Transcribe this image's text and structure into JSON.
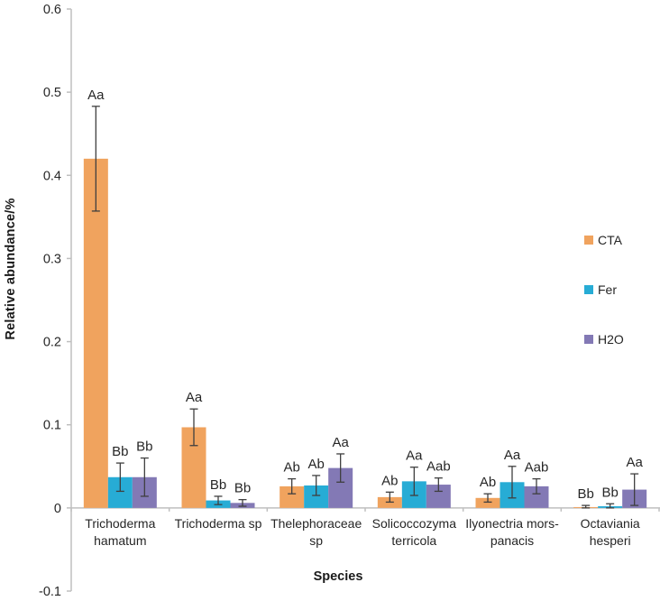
{
  "chart_data": {
    "type": "bar",
    "title": "",
    "xlabel": "Species",
    "ylabel": "Relative abundance/%",
    "ylim": [
      -0.1,
      0.6
    ],
    "ytick_labels": [
      "0.6",
      "0.5",
      "0.4",
      "0.3",
      "0.2",
      "0.1",
      "0",
      "-0.1"
    ],
    "ytick_values": [
      0.6,
      0.5,
      0.4,
      0.3,
      0.2,
      0.1,
      0,
      -0.1
    ],
    "grid": false,
    "legend_position": "right",
    "categories": [
      "Trichoderma hamatum",
      "Trichoderma sp",
      "Thelephoraceae sp",
      "Solicoccozyma terricola",
      "Ilyonectria mors-panacis",
      "Octaviania hesperi"
    ],
    "category_label_lines": [
      [
        "Trichoderma",
        "hamatum"
      ],
      [
        "Trichoderma sp"
      ],
      [
        "Thelephoraceae",
        "sp"
      ],
      [
        "Solicoccozyma",
        "terricola"
      ],
      [
        "Ilyonectria mors-",
        "panacis"
      ],
      [
        "Octaviania",
        "hesperi"
      ]
    ],
    "series": [
      {
        "name": "CTA",
        "color": "#F0A35E",
        "values": [
          0.42,
          0.097,
          0.026,
          0.013,
          0.012,
          0.001
        ],
        "errors": [
          0.063,
          0.022,
          0.009,
          0.006,
          0.005,
          0.002
        ],
        "sig_labels": [
          "Aa",
          "Aa",
          "Ab",
          "Ab",
          "Ab",
          "Bb"
        ]
      },
      {
        "name": "Fer",
        "color": "#27ACD5",
        "values": [
          0.037,
          0.009,
          0.027,
          0.032,
          0.031,
          0.002
        ],
        "errors": [
          0.017,
          0.005,
          0.012,
          0.017,
          0.019,
          0.003
        ],
        "sig_labels": [
          "Bb",
          "Bb",
          "Ab",
          "Aa",
          "Aa",
          "Bb"
        ]
      },
      {
        "name": "H2O",
        "color": "#8379B5",
        "values": [
          0.037,
          0.006,
          0.048,
          0.028,
          0.026,
          0.022
        ],
        "errors": [
          0.023,
          0.004,
          0.017,
          0.008,
          0.009,
          0.019
        ],
        "sig_labels": [
          "Bb",
          "Bb",
          "Aa",
          "Aab",
          "Aab",
          "Aa"
        ]
      }
    ],
    "colors": {
      "axis_line": "#BFBFBF",
      "error_bar": "#3F3F3F",
      "tick_text": "#262626",
      "sig_text": "#262626"
    }
  }
}
